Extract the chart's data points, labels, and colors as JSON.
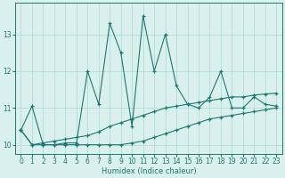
{
  "xlabel": "Humidex (Indice chaleur)",
  "x_values": [
    0,
    1,
    2,
    3,
    4,
    5,
    6,
    7,
    8,
    9,
    10,
    11,
    12,
    13,
    14,
    15,
    16,
    17,
    18,
    19,
    20,
    21,
    22,
    23
  ],
  "series1": [
    10.4,
    11.05,
    10.0,
    10.0,
    10.05,
    10.05,
    12.0,
    11.1,
    13.3,
    12.5,
    10.5,
    13.5,
    12.0,
    13.0,
    11.6,
    11.1,
    11.0,
    11.3,
    12.0,
    11.0,
    11.0,
    11.3,
    11.1,
    11.05
  ],
  "series2": [
    10.4,
    10.0,
    10.05,
    10.1,
    10.15,
    10.2,
    10.25,
    10.35,
    10.5,
    10.6,
    10.7,
    10.8,
    10.9,
    11.0,
    11.05,
    11.1,
    11.15,
    11.2,
    11.25,
    11.3,
    11.3,
    11.35,
    11.38,
    11.4
  ],
  "series3": [
    10.4,
    10.0,
    10.0,
    10.0,
    10.0,
    10.0,
    10.0,
    10.0,
    10.0,
    10.0,
    10.05,
    10.1,
    10.2,
    10.3,
    10.4,
    10.5,
    10.6,
    10.7,
    10.75,
    10.8,
    10.85,
    10.9,
    10.95,
    11.0
  ],
  "line_color": "#1a7a6e",
  "bg_color": "#daf0ed",
  "grid_color": "#a8d8d4",
  "ylim": [
    9.75,
    13.85
  ],
  "yticks": [
    10,
    11,
    12,
    13
  ],
  "xticks": [
    0,
    1,
    2,
    3,
    4,
    5,
    6,
    7,
    8,
    9,
    10,
    11,
    12,
    13,
    14,
    15,
    16,
    17,
    18,
    19,
    20,
    21,
    22,
    23
  ]
}
